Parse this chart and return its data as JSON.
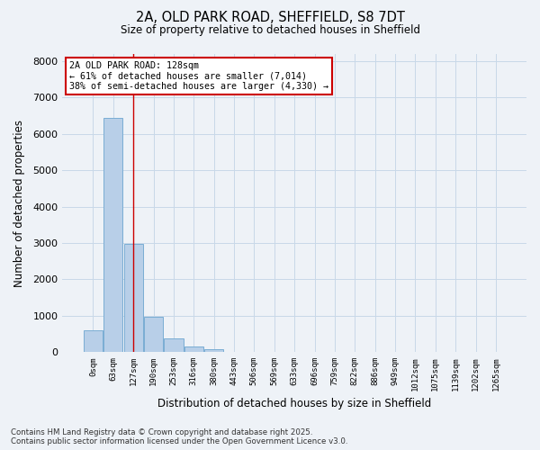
{
  "title_line1": "2A, OLD PARK ROAD, SHEFFIELD, S8 7DT",
  "title_line2": "Size of property relative to detached houses in Sheffield",
  "xlabel": "Distribution of detached houses by size in Sheffield",
  "ylabel": "Number of detached properties",
  "bar_color": "#b8cfe8",
  "bar_edge_color": "#7aadd4",
  "grid_color": "#c8d8e8",
  "background_color": "#eef2f7",
  "vline_color": "#cc0000",
  "vline_x_index": 2,
  "annotation_text": "2A OLD PARK ROAD: 128sqm\n← 61% of detached houses are smaller (7,014)\n38% of semi-detached houses are larger (4,330) →",
  "annotation_box_color": "#ffffff",
  "annotation_box_edge": "#cc0000",
  "bins": [
    "0sqm",
    "63sqm",
    "127sqm",
    "190sqm",
    "253sqm",
    "316sqm",
    "380sqm",
    "443sqm",
    "506sqm",
    "569sqm",
    "633sqm",
    "696sqm",
    "759sqm",
    "822sqm",
    "886sqm",
    "949sqm",
    "1012sqm",
    "1075sqm",
    "1139sqm",
    "1202sqm",
    "1265sqm"
  ],
  "values": [
    600,
    6450,
    2980,
    980,
    370,
    160,
    80,
    0,
    0,
    0,
    0,
    0,
    0,
    0,
    0,
    0,
    0,
    0,
    0,
    0,
    0
  ],
  "ylim": [
    0,
    8200
  ],
  "yticks": [
    0,
    1000,
    2000,
    3000,
    4000,
    5000,
    6000,
    7000,
    8000
  ],
  "footer_line1": "Contains HM Land Registry data © Crown copyright and database right 2025.",
  "footer_line2": "Contains public sector information licensed under the Open Government Licence v3.0."
}
